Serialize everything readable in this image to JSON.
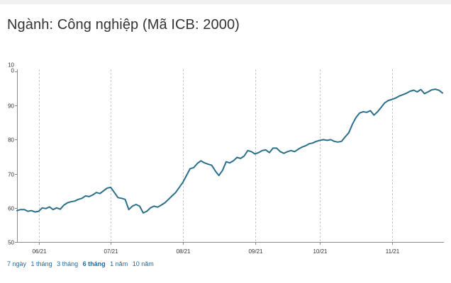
{
  "header": {
    "title": "Ngành: Công nghiệp (Mã ICB: 2000)"
  },
  "range_selector": {
    "items": [
      {
        "label": "7 ngày",
        "active": false
      },
      {
        "label": "1 tháng",
        "active": false
      },
      {
        "label": "3 tháng",
        "active": false
      },
      {
        "label": "6 tháng",
        "active": true
      },
      {
        "label": "1 năm",
        "active": false
      },
      {
        "label": "10 năm",
        "active": false
      }
    ]
  },
  "colors": {
    "line": "#2b6f88",
    "grid_vertical": "#c8c8c8",
    "axis": "#8a8a8a",
    "active_range": "#1a6aa6"
  },
  "chart_data": {
    "type": "line",
    "title": "",
    "xlabel": "",
    "ylabel": "",
    "ylim": [
      50,
      100
    ],
    "y_ticks": [
      "50",
      "60",
      "70",
      "80",
      "90",
      "10\n0"
    ],
    "y_tick_values": [
      50,
      60,
      70,
      80,
      90,
      100
    ],
    "x_tick_labels": [
      "06/21",
      "07/21",
      "08/21",
      "09/21",
      "10/21",
      "11/21"
    ],
    "x_tick_values": [
      6,
      26,
      46,
      66,
      84,
      104
    ],
    "grid": "vertical dashed at month ticks",
    "legend": "none",
    "series": [
      {
        "x": [
          0,
          1,
          2,
          3,
          4,
          5,
          6,
          7,
          8,
          9,
          10,
          11,
          12,
          13,
          14,
          15,
          16,
          17,
          18,
          19,
          20,
          21,
          22,
          23,
          24,
          25,
          26,
          27,
          28,
          29,
          30,
          31,
          32,
          33,
          34,
          35,
          36,
          37,
          38,
          39,
          40,
          41,
          42,
          43,
          44,
          45,
          46,
          47,
          48,
          49,
          50,
          51,
          52,
          53,
          54,
          55,
          56,
          57,
          58,
          59,
          60,
          61,
          62,
          63,
          64,
          65,
          66,
          67,
          68,
          69,
          70,
          71,
          72,
          73,
          74,
          75,
          76,
          77,
          78,
          79,
          80,
          81,
          82,
          83,
          84,
          85,
          86,
          87,
          88,
          89,
          90,
          91,
          92,
          93,
          94,
          95,
          96,
          97,
          98,
          99,
          100,
          101,
          102,
          103,
          104,
          105,
          106,
          107,
          108,
          109,
          110,
          111,
          112,
          113,
          114,
          115,
          116,
          117,
          118
        ],
        "values": [
          59.2,
          59.5,
          59.5,
          59.0,
          59.2,
          58.8,
          59.0,
          60.0,
          59.8,
          60.3,
          59.5,
          60.0,
          59.6,
          60.8,
          61.5,
          61.8,
          62.0,
          62.5,
          62.8,
          63.5,
          63.3,
          63.8,
          64.5,
          64.2,
          65.0,
          65.8,
          66.0,
          64.5,
          63.0,
          62.8,
          62.5,
          59.5,
          60.5,
          61.0,
          60.5,
          58.5,
          59.0,
          60.0,
          60.5,
          60.2,
          60.8,
          61.5,
          62.5,
          63.5,
          64.5,
          66.0,
          67.5,
          69.5,
          71.5,
          71.8,
          73.0,
          73.8,
          73.2,
          72.8,
          72.5,
          70.8,
          69.5,
          71.0,
          73.5,
          73.2,
          73.8,
          74.8,
          74.5,
          75.2,
          76.8,
          76.5,
          75.8,
          76.2,
          76.8,
          77.0,
          76.2,
          77.5,
          77.5,
          76.5,
          76.0,
          76.5,
          76.8,
          76.5,
          77.2,
          77.8,
          78.2,
          78.8,
          79.0,
          79.5,
          79.8,
          80.0,
          79.8,
          80.0,
          79.5,
          79.3,
          79.5,
          80.8,
          82.0,
          84.5,
          86.5,
          87.8,
          88.2,
          88.0,
          88.5,
          87.2,
          88.2,
          89.5,
          90.8,
          91.5,
          91.8,
          92.2,
          92.8,
          93.2,
          93.6,
          94.2,
          94.5,
          94.0,
          94.7,
          93.5,
          94.0,
          94.6,
          94.8,
          94.5,
          93.7
        ]
      }
    ]
  }
}
